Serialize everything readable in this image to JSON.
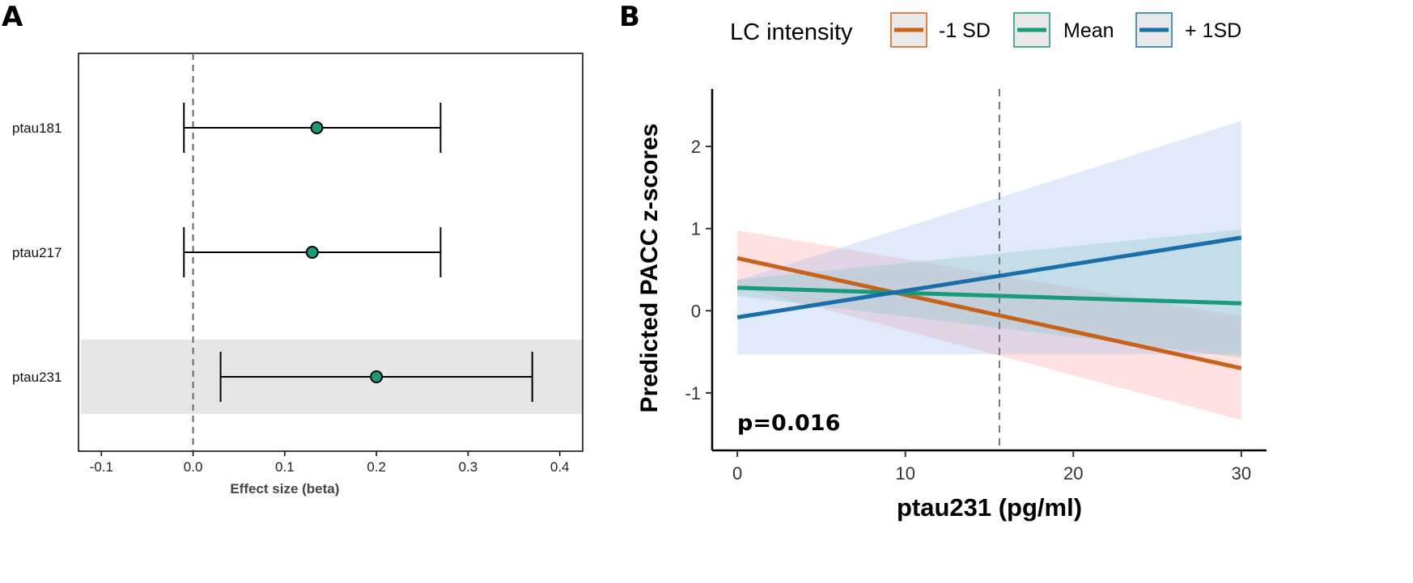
{
  "chart_data": [
    {
      "panel": "A",
      "type": "scatter",
      "subtype": "forest-plot",
      "title": "",
      "xlabel": "Effect size (beta)",
      "ylabel": "",
      "xlim": [
        -0.125,
        0.425
      ],
      "xticks": [
        -0.1,
        0.0,
        0.1,
        0.2,
        0.3,
        0.4
      ],
      "xtick_labels": [
        "-0.1",
        "0.0",
        "0.1",
        "0.2",
        "0.3",
        "0.4"
      ],
      "reference_line_x": 0.0,
      "highlight_row": "ptau231",
      "point_color": "#1a9a78",
      "rows": [
        {
          "label": "ptau181",
          "estimate": 0.135,
          "lower": -0.01,
          "upper": 0.27
        },
        {
          "label": "ptau217",
          "estimate": 0.13,
          "lower": -0.01,
          "upper": 0.27
        },
        {
          "label": "ptau231",
          "estimate": 0.2,
          "lower": 0.03,
          "upper": 0.37
        }
      ]
    },
    {
      "panel": "B",
      "type": "line",
      "title": "",
      "xlabel": "ptau231 (pg/ml)",
      "ylabel": "Predicted PACC z-scores",
      "xlim": [
        -1.5,
        31.5
      ],
      "ylim": [
        -1.7,
        2.7
      ],
      "xticks": [
        0,
        10,
        20,
        30
      ],
      "yticks": [
        -1,
        0,
        1,
        2
      ],
      "vline_x": 15.6,
      "annotation": "p=0.016",
      "legend": {
        "title": "LC intensity",
        "position": "top"
      },
      "series": [
        {
          "name": "-1 SD",
          "color": "#c8621a",
          "band_color": "#ff9a9a",
          "x": [
            0,
            30
          ],
          "y": [
            0.64,
            -0.7
          ],
          "lower": [
            0.3,
            -1.33
          ],
          "upper": [
            0.98,
            -0.07
          ]
        },
        {
          "name": "Mean",
          "color": "#1a9a78",
          "band_color": "#6fc4b0",
          "x": [
            0,
            30
          ],
          "y": [
            0.28,
            0.09
          ],
          "lower": [
            0.18,
            -0.57
          ],
          "upper": [
            0.38,
            0.99
          ]
        },
        {
          "name": "+ 1SD",
          "color": "#1a6fa8",
          "band_color": "#9db8f0",
          "x": [
            0,
            30
          ],
          "y": [
            -0.08,
            0.89
          ],
          "lower": [
            -0.53,
            -0.53
          ],
          "upper": [
            0.37,
            2.31
          ]
        }
      ]
    }
  ]
}
